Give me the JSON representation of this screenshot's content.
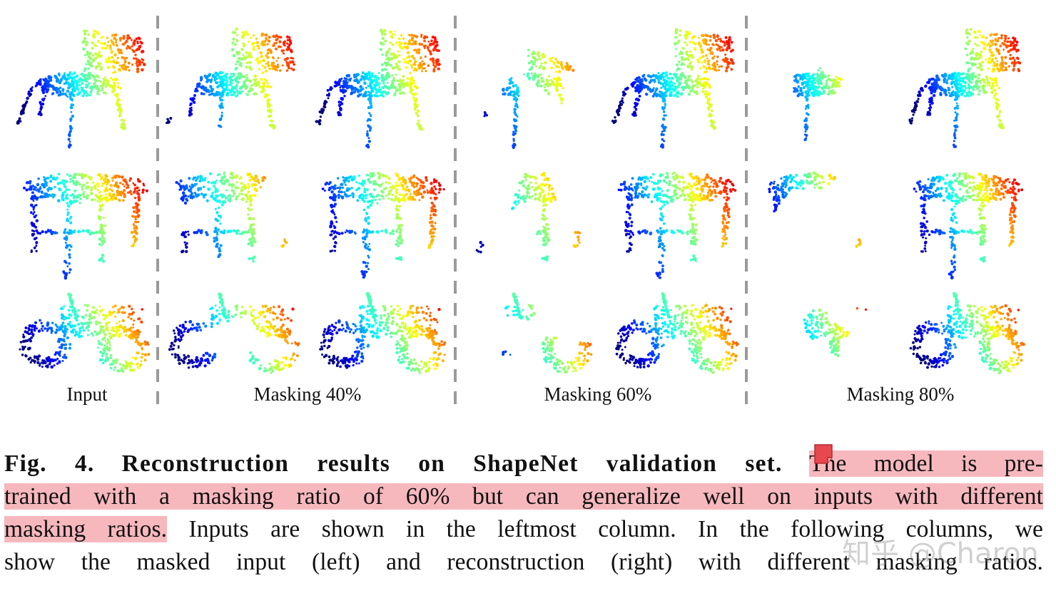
{
  "figure": {
    "column_labels": [
      "Input",
      "Masking 40%",
      "Masking 60%",
      "Masking 80%"
    ]
  },
  "caption": {
    "label": "Fig. 4.",
    "title": "Reconstruction results on ShapeNet validation set.",
    "line1_highlight": "The model is pre-",
    "line2_highlight": "trained with a masking ratio of 60% but can generalize well on inputs with different",
    "line3_highlight": "masking ratios.",
    "line3_rest": " Inputs are shown in the leftmost column. In the following columns, we",
    "line4": "show the masked input (left) and reconstruction (right) with different masking ratios."
  },
  "annotation": {
    "icon": "sticky-note-icon",
    "color": "#e8474f"
  },
  "watermark": {
    "text": "知乎 @Charon"
  }
}
